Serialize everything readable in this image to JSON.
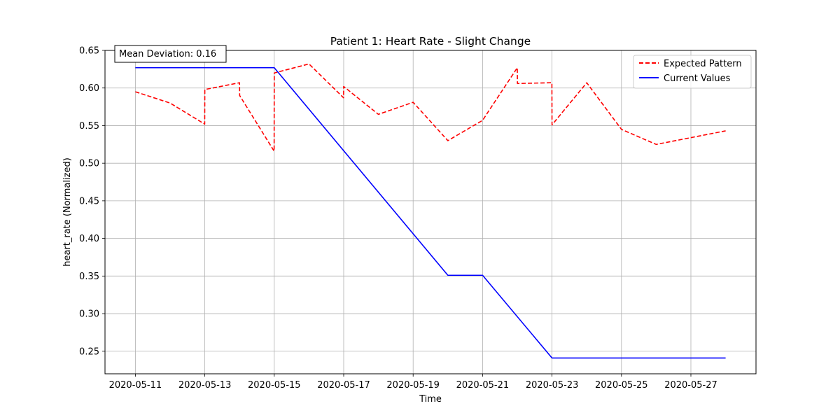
{
  "chart_data": {
    "type": "line",
    "title": "Patient 1: Heart Rate - Slight Change",
    "xlabel": "Time",
    "ylabel": "heart_rate (Normalized)",
    "xlim": [
      "2020-05-10T03:00",
      "2020-05-28T21:00"
    ],
    "ylim": [
      0.22,
      0.65
    ],
    "grid": true,
    "legend_position": "top-right",
    "xticks": [
      "2020-05-11",
      "2020-05-13",
      "2020-05-15",
      "2020-05-17",
      "2020-05-19",
      "2020-05-21",
      "2020-05-23",
      "2020-05-25",
      "2020-05-27"
    ],
    "yticks": [
      "0.25",
      "0.30",
      "0.35",
      "0.40",
      "0.45",
      "0.50",
      "0.55",
      "0.60",
      "0.65"
    ],
    "annotation": "Mean Deviation: 0.16",
    "series": [
      {
        "name": "Expected Pattern",
        "color": "#ff0000",
        "style": "dashed",
        "points": [
          [
            "2020-05-11T00:00",
            0.595
          ],
          [
            "2020-05-12T00:00",
            0.58
          ],
          [
            "2020-05-12T23:55",
            0.552
          ],
          [
            "2020-05-13T00:00",
            0.598
          ],
          [
            "2020-05-14T00:00",
            0.607
          ],
          [
            "2020-05-14T00:05",
            0.59
          ],
          [
            "2020-05-14T23:55",
            0.516
          ],
          [
            "2020-05-15T00:00",
            0.62
          ],
          [
            "2020-05-16T00:00",
            0.632
          ],
          [
            "2020-05-16T23:55",
            0.587
          ],
          [
            "2020-05-17T00:00",
            0.602
          ],
          [
            "2020-05-18T00:00",
            0.565
          ],
          [
            "2020-05-19T00:00",
            0.581
          ],
          [
            "2020-05-20T00:00",
            0.53
          ],
          [
            "2020-05-21T00:00",
            0.557
          ],
          [
            "2020-05-22T00:00",
            0.627
          ],
          [
            "2020-05-22T00:05",
            0.606
          ],
          [
            "2020-05-22T23:55",
            0.607
          ],
          [
            "2020-05-23T00:00",
            0.551
          ],
          [
            "2020-05-24T00:00",
            0.607
          ],
          [
            "2020-05-25T00:00",
            0.545
          ],
          [
            "2020-05-26T00:00",
            0.525
          ],
          [
            "2020-05-28T00:00",
            0.543
          ]
        ]
      },
      {
        "name": "Current Values",
        "color": "#0000ff",
        "style": "solid",
        "points": [
          [
            "2020-05-11T00:00",
            0.627
          ],
          [
            "2020-05-15T00:00",
            0.627
          ],
          [
            "2020-05-20T00:00",
            0.351
          ],
          [
            "2020-05-21T00:00",
            0.351
          ],
          [
            "2020-05-23T00:00",
            0.241
          ],
          [
            "2020-05-28T00:00",
            0.241
          ]
        ]
      }
    ]
  }
}
